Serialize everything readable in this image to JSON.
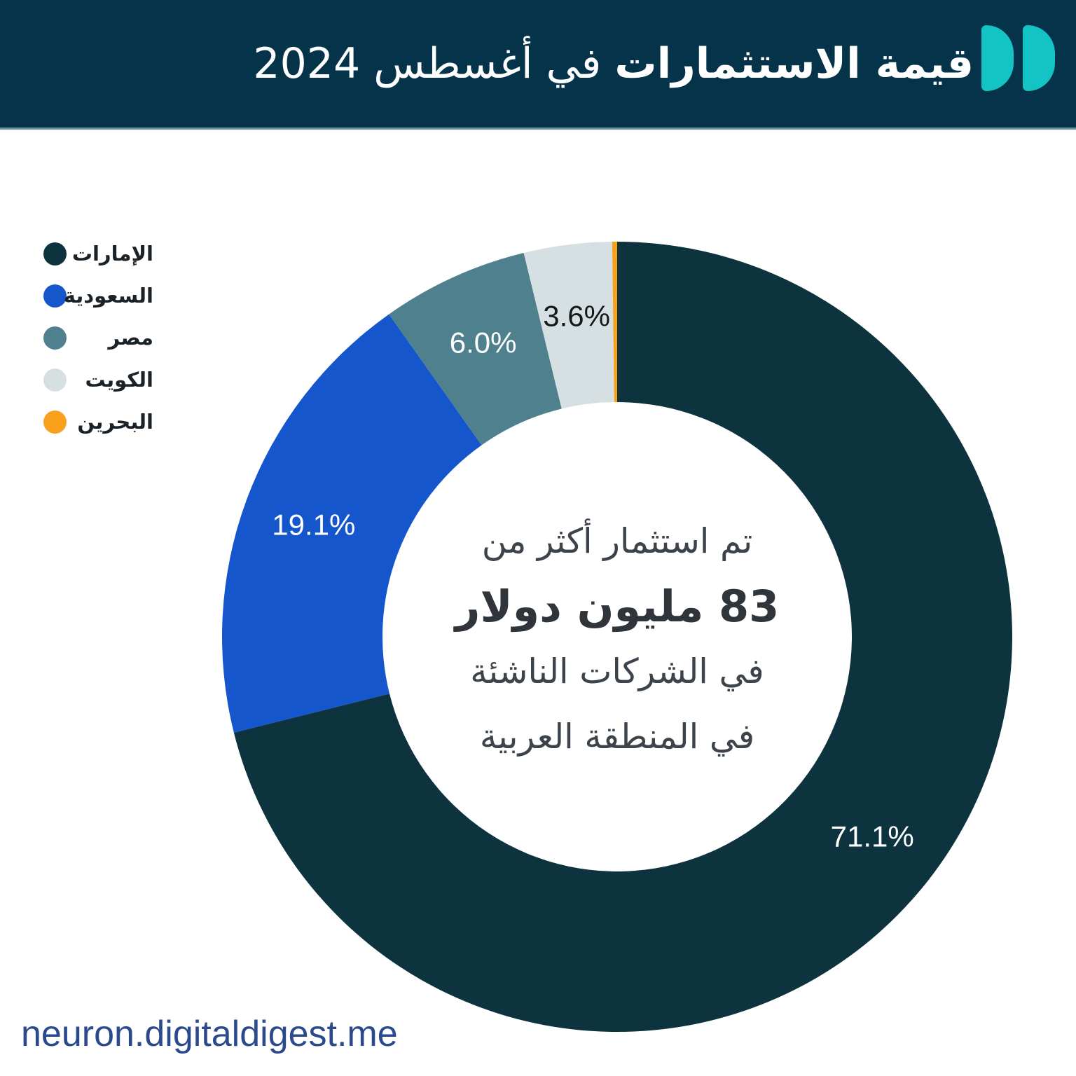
{
  "header": {
    "title_bold": "قيمة الاستثمارات",
    "title_regular": " في أغسطس 2024",
    "logo_name": "digital-digest-logo",
    "bg_color": "#05334a",
    "accent_color": "#14c3c3"
  },
  "center_text": {
    "line1": "تم استثمار أكثر من",
    "line2": "83 مليون دولار",
    "line3": "في الشركات الناشئة",
    "line4": "في المنطقة العربية"
  },
  "footer": {
    "url": "neuron.digitaldigest.me",
    "color": "#2b4a8c"
  },
  "chart_data": {
    "type": "pie",
    "subtype": "donut",
    "title": "قيمة الاستثمارات في أغسطس 2024",
    "legend_position": "left",
    "start_angle_deg_from_top": 0,
    "direction": "clockwise",
    "segments": [
      {
        "label": "الإمارات",
        "value": 71.1,
        "display": "71.1%",
        "color": "#0d333e",
        "label_color": "#ffffff"
      },
      {
        "label": "السعودية",
        "value": 19.1,
        "display": "19.1%",
        "color": "#1556cd",
        "label_color": "#ffffff"
      },
      {
        "label": "مصر",
        "value": 6.0,
        "display": "6.0%",
        "color": "#4f808e",
        "label_color": "#ffffff"
      },
      {
        "label": "الكويت",
        "value": 3.6,
        "display": "3.6%",
        "color": "#d6e0e3",
        "label_color": "#15181a"
      },
      {
        "label": "البحرين",
        "value": 0.2,
        "display": "",
        "color": "#f9a11c",
        "label_color": ""
      }
    ]
  }
}
